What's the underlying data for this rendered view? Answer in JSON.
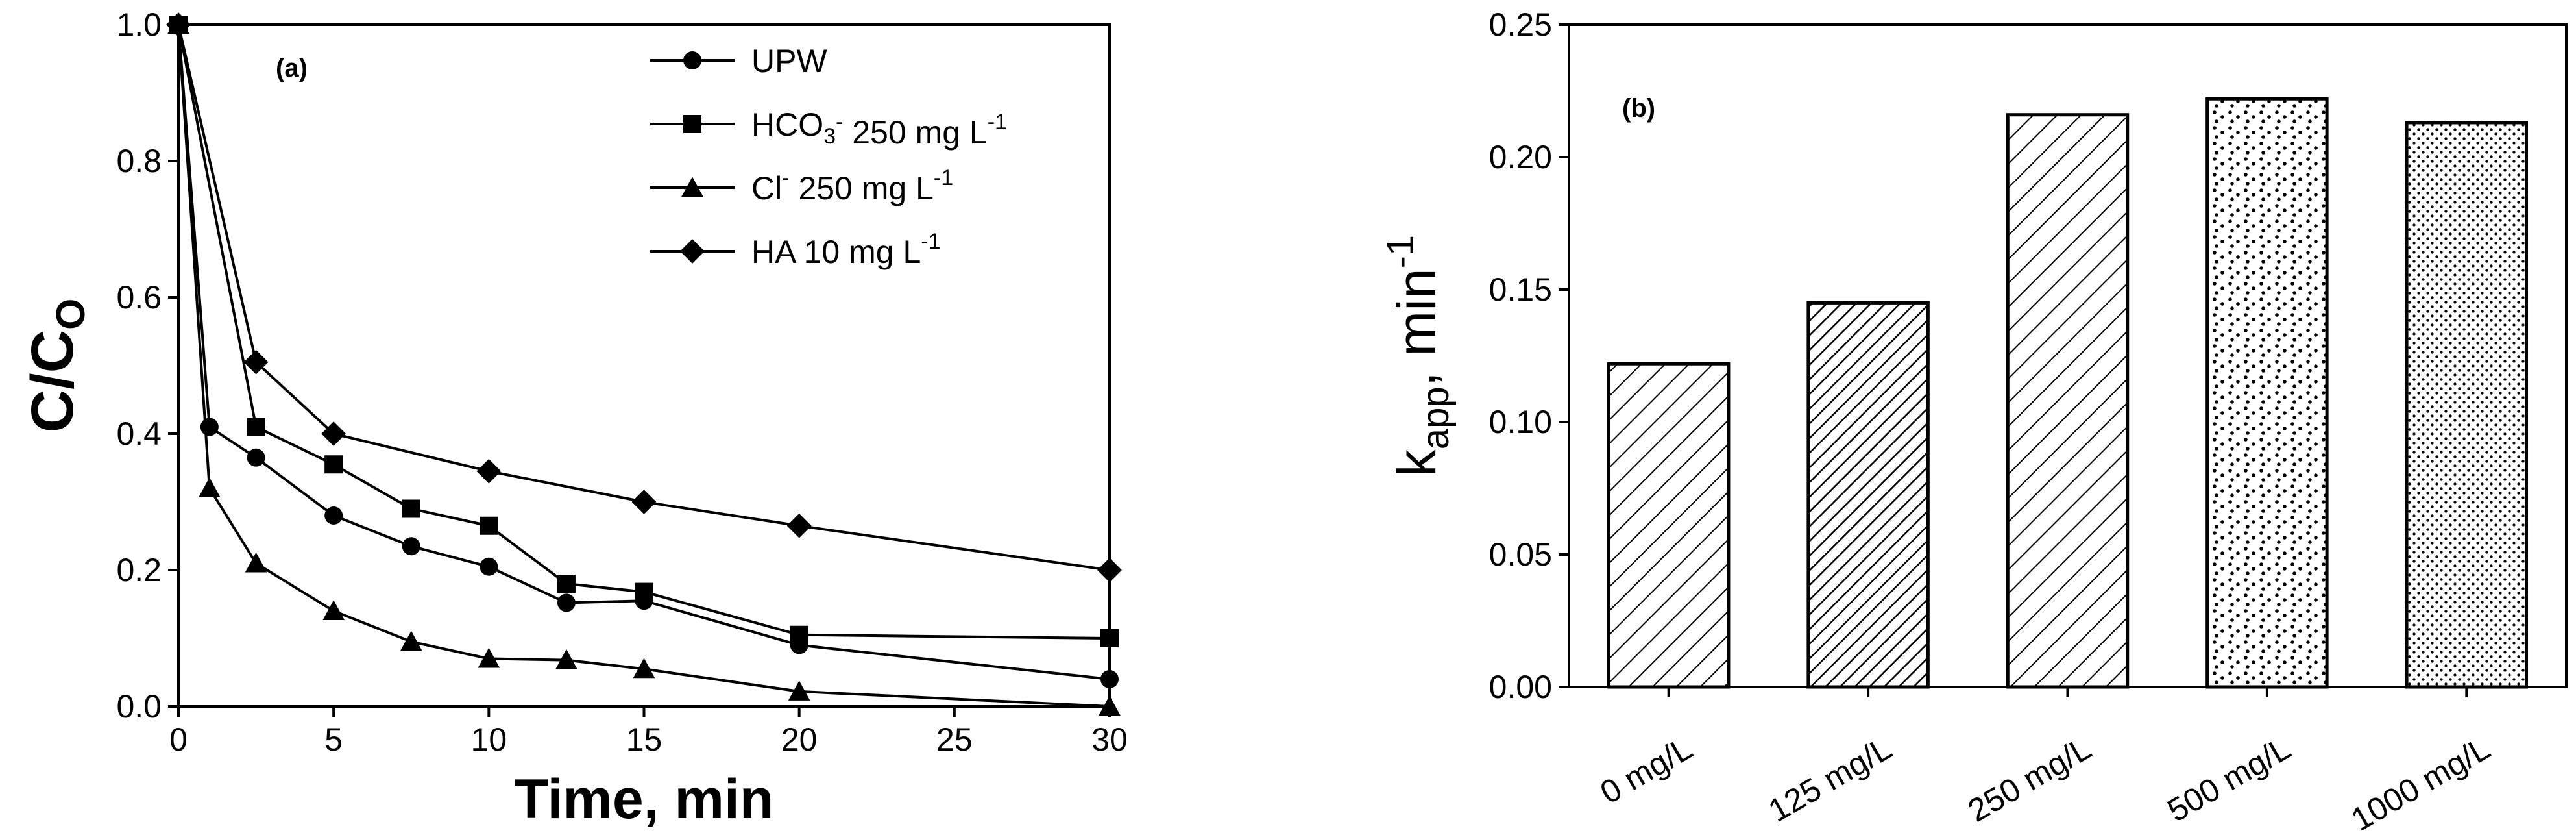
{
  "chart_data": [
    {
      "type": "line",
      "panel_label": "(a)",
      "xlabel": "Time, min",
      "ylabel_main": "C/C",
      "ylabel_sub": "O",
      "xlim": [
        0,
        30
      ],
      "ylim": [
        0,
        1.0
      ],
      "xticks": [
        0,
        5,
        10,
        15,
        20,
        25,
        30
      ],
      "xtick_labels": [
        "0",
        "5",
        "10",
        "15",
        "20",
        "25",
        "30"
      ],
      "yticks": [
        0,
        0.2,
        0.4,
        0.6,
        0.8,
        1.0
      ],
      "ytick_labels": [
        "0.0",
        "0.2",
        "0.4",
        "0.6",
        "0.8",
        "1.0"
      ],
      "legend_position": "top-right",
      "series": [
        {
          "name": "UPW",
          "legend_parts": [
            {
              "t": "UPW"
            }
          ],
          "marker": "circle",
          "x": [
            0,
            1,
            2.5,
            5,
            7.5,
            10,
            12.5,
            15,
            20,
            30
          ],
          "y": [
            1.0,
            0.41,
            0.365,
            0.28,
            0.235,
            0.205,
            0.152,
            0.155,
            0.09,
            0.04
          ]
        },
        {
          "name": "HCO3- 250 mg L-1",
          "legend_parts": [
            {
              "t": "HCO"
            },
            {
              "t": "3",
              "sub": true
            },
            {
              "t": "-",
              "sup": true
            },
            {
              "t": " 250 mg L"
            },
            {
              "t": "-1",
              "sup": true
            }
          ],
          "marker": "square",
          "x": [
            0,
            2.5,
            5,
            7.5,
            10,
            12.5,
            15,
            20,
            30
          ],
          "y": [
            1.0,
            0.41,
            0.355,
            0.29,
            0.265,
            0.18,
            0.168,
            0.105,
            0.1
          ]
        },
        {
          "name": "Cl- 250 mg L-1",
          "legend_parts": [
            {
              "t": "Cl"
            },
            {
              "t": "-",
              "sup": true
            },
            {
              "t": " 250 mg L"
            },
            {
              "t": "-1",
              "sup": true
            }
          ],
          "marker": "triangle",
          "x": [
            0,
            1,
            2.5,
            5,
            7.5,
            10,
            12.5,
            15,
            20,
            30
          ],
          "y": [
            1.0,
            0.32,
            0.21,
            0.14,
            0.095,
            0.07,
            0.068,
            0.055,
            0.022,
            0.0
          ]
        },
        {
          "name": "HA 10 mg L-1",
          "legend_parts": [
            {
              "t": "HA 10 mg L"
            },
            {
              "t": "-1",
              "sup": true
            }
          ],
          "marker": "diamond",
          "x": [
            0,
            2.5,
            5,
            10,
            15,
            20,
            30
          ],
          "y": [
            1.0,
            0.505,
            0.4,
            0.345,
            0.3,
            0.265,
            0.2
          ]
        }
      ]
    },
    {
      "type": "bar",
      "panel_label": "(b)",
      "ylabel_main": "k",
      "ylabel_sub": "app",
      "ylabel_rest": ", min",
      "ylabel_sup": "-1",
      "ylim": [
        0,
        0.25
      ],
      "yticks": [
        0,
        0.05,
        0.1,
        0.15,
        0.2,
        0.25
      ],
      "ytick_labels": [
        "0.00",
        "0.05",
        "0.10",
        "0.15",
        "0.20",
        "0.25"
      ],
      "categories": [
        "0 mg/L",
        "125 mg/L",
        "250 mg/L",
        "500 mg/L",
        "1000 mg/L"
      ],
      "values": [
        0.122,
        0.145,
        0.216,
        0.222,
        0.213
      ],
      "patterns": [
        "hatch-sparse",
        "hatch-dense",
        "hatch-sparse",
        "dots-sparse",
        "dots-dense"
      ]
    }
  ]
}
